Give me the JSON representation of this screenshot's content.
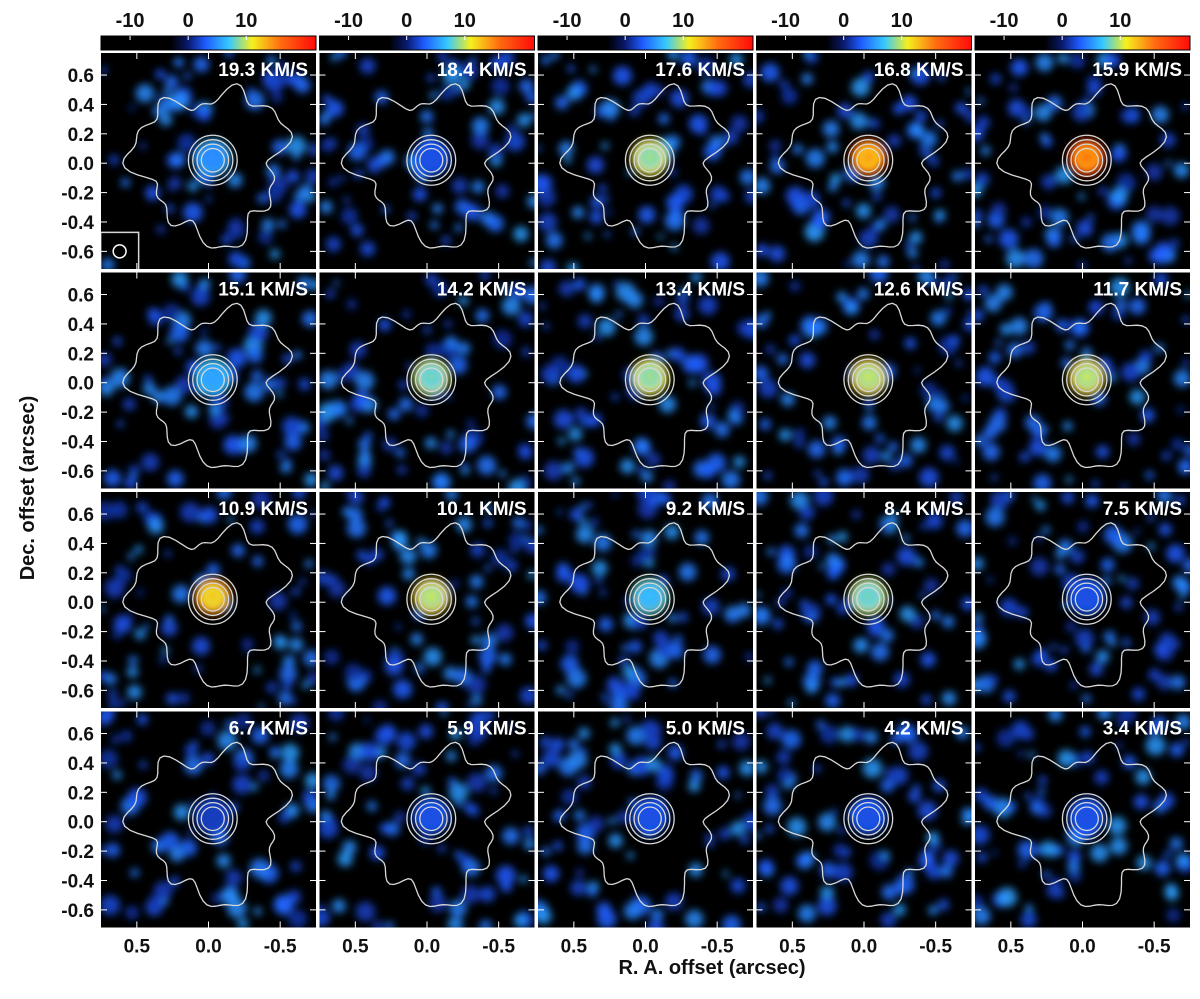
{
  "chart_data": {
    "type": "heatmap",
    "title": "",
    "xlabel": "R. A. offset (arcsec)",
    "ylabel": "Dec. offset (arcsec)",
    "xlim": [
      0.75,
      -0.75
    ],
    "ylim": [
      -0.72,
      0.75
    ],
    "x_ticks": [
      0.5,
      0.0,
      -0.5
    ],
    "x_tick_labels": [
      "0.5",
      "0.0",
      "-0.5"
    ],
    "y_ticks": [
      0.6,
      0.4,
      0.2,
      0.0,
      -0.2,
      -0.4,
      -0.6
    ],
    "y_tick_labels": [
      "0.6",
      "0.4",
      "0.2",
      "0.0",
      "-0.2",
      "-0.4",
      "-0.6"
    ],
    "colorbar": {
      "range": [
        -15,
        22
      ],
      "ticks": [
        -10,
        0,
        10
      ],
      "tick_labels": [
        "-10",
        "0",
        "10"
      ],
      "stops": [
        {
          "v": -15,
          "color": "#000000"
        },
        {
          "v": -3,
          "color": "#000000"
        },
        {
          "v": 0,
          "color": "#0a1a6e"
        },
        {
          "v": 3,
          "color": "#1f5bff"
        },
        {
          "v": 7,
          "color": "#35c8ff"
        },
        {
          "v": 11,
          "color": "#f5f01e"
        },
        {
          "v": 16,
          "color": "#ff6a10"
        },
        {
          "v": 22,
          "color": "#ff0a0a"
        }
      ]
    },
    "grid": false,
    "rows": 4,
    "cols": 5,
    "channels": [
      {
        "label": "19.3 KM/S",
        "velocity": 19.3,
        "peak": 6
      },
      {
        "label": "18.4 KM/S",
        "velocity": 18.4,
        "peak": 3
      },
      {
        "label": "17.6 KM/S",
        "velocity": 17.6,
        "peak": 11
      },
      {
        "label": "16.8 KM/S",
        "velocity": 16.8,
        "peak": 17
      },
      {
        "label": "15.9 KM/S",
        "velocity": 15.9,
        "peak": 19
      },
      {
        "label": "15.1 KM/S",
        "velocity": 15.1,
        "peak": 7
      },
      {
        "label": "14.2 KM/S",
        "velocity": 14.2,
        "peak": 10
      },
      {
        "label": "13.4 KM/S",
        "velocity": 13.4,
        "peak": 11
      },
      {
        "label": "12.6 KM/S",
        "velocity": 12.6,
        "peak": 12
      },
      {
        "label": "11.7 KM/S",
        "velocity": 11.7,
        "peak": 12
      },
      {
        "label": "10.9 KM/S",
        "velocity": 10.9,
        "peak": 15
      },
      {
        "label": "10.1 KM/S",
        "velocity": 10.1,
        "peak": 12
      },
      {
        "label": "9.2 KM/S",
        "velocity": 9.2,
        "peak": 8
      },
      {
        "label": "8.4 KM/S",
        "velocity": 8.4,
        "peak": 10
      },
      {
        "label": "7.5 KM/S",
        "velocity": 7.5,
        "peak": 3
      },
      {
        "label": "6.7 KM/S",
        "velocity": 6.7,
        "peak": 2
      },
      {
        "label": "5.9 KM/S",
        "velocity": 5.9,
        "peak": 3
      },
      {
        "label": "5.0 KM/S",
        "velocity": 5.0,
        "peak": 3
      },
      {
        "label": "4.2 KM/S",
        "velocity": 4.2,
        "peak": 3
      },
      {
        "label": "3.4 KM/S",
        "velocity": 3.4,
        "peak": 3
      }
    ],
    "continuum_contour_radii_arcsec": [
      0.08,
      0.11,
      0.14,
      0.17
    ],
    "beam_panel": 0,
    "beam_radius_arcsec": 0.045
  },
  "colors": {
    "contour": "#d8d8d8",
    "separator": "#ffffff",
    "background": "#000000",
    "text": "#111111"
  }
}
